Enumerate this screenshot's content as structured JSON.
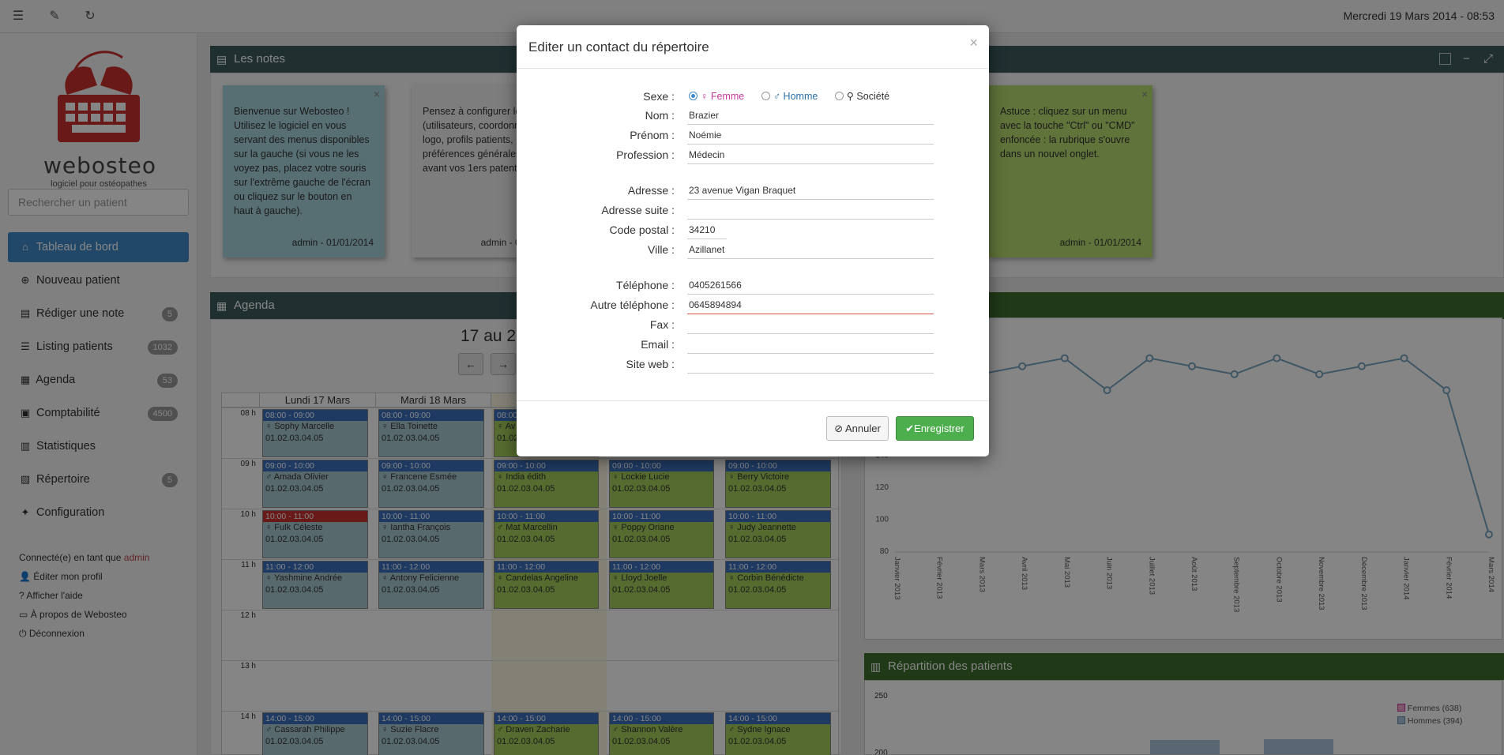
{
  "topbar": {
    "icons": [
      "list-icon",
      "magic-wand-icon",
      "refresh-icon"
    ],
    "datetime": "Mercredi 19 Mars 2014 - 08:53"
  },
  "sidebar": {
    "logo_text": "webosteo",
    "logo_sub": "logiciel pour ostéopathes",
    "search_placeholder": "Rechercher un patient",
    "items": [
      {
        "label": "Tableau de bord",
        "icon": "home-icon",
        "badge": ""
      },
      {
        "label": "Nouveau patient",
        "icon": "plus-circle-icon",
        "badge": ""
      },
      {
        "label": "Rédiger une note",
        "icon": "note-icon",
        "badge": "5"
      },
      {
        "label": "Listing patients",
        "icon": "list-icon",
        "badge": "1032"
      },
      {
        "label": "Agenda",
        "icon": "calendar-icon",
        "badge": "53"
      },
      {
        "label": "Comptabilité",
        "icon": "ledger-icon",
        "badge": "4500"
      },
      {
        "label": "Statistiques",
        "icon": "bar-chart-icon",
        "badge": ""
      },
      {
        "label": "Répertoire",
        "icon": "book-icon",
        "badge": "5"
      },
      {
        "label": "Configuration",
        "icon": "wrench-icon",
        "badge": ""
      }
    ],
    "user": {
      "connected_prefix": "Connecté(e) en tant que",
      "username": "admin",
      "links": [
        "Éditer mon profil",
        "Afficher l'aide",
        "À propos de Webosteo",
        "Déconnexion"
      ]
    }
  },
  "notes_panel": {
    "title": "Les notes",
    "notes": [
      {
        "text": "Bienvenue sur Webosteo ! Utilisez le logiciel en vous servant des menus disponibles sur la gauche (si vous ne les voyez pas, placez votre souris sur l'extrême gauche de l'écran ou cliquez sur le bouton en haut à gauche).",
        "footer": "admin - 01/01/2014"
      },
      {
        "text": "Pensez à configurer le logiciel (utilisateurs, coordonnées et logo, profils patients, préférences générales, etc) avant vos 1ers patents.",
        "footer": "admin - 01/01/2014"
      },
      {
        "text": "Astuce : cliquez sur un menu avec la touche \"Ctrl\" ou \"CMD\" enfoncée : la rubrique s'ouvre dans un nouvel onglet.",
        "footer": "admin - 01/01/2014"
      }
    ]
  },
  "agenda_panel": {
    "title": "Agenda",
    "range": "17 au 21",
    "prev": "←",
    "next": "→",
    "days": [
      "Lundi 17 Mars",
      "Mardi 18 Mars",
      "M",
      "",
      ""
    ],
    "hours": [
      "08 h",
      "09 h",
      "10 h",
      "11 h",
      "12 h",
      "13 h",
      "14 h"
    ],
    "appointments": [
      {
        "day": 0,
        "slot": 0,
        "time": "08:00 - 09:00",
        "name": "♀ Sophy Marcelle",
        "phone": "01.02.03.04.05",
        "color": "blue"
      },
      {
        "day": 1,
        "slot": 0,
        "time": "08:00 - 09:00",
        "name": "♀ Ella Toinette",
        "phone": "01.02.03.04.05",
        "color": "blue"
      },
      {
        "day": 2,
        "slot": 0,
        "time": "08:00 - 09:00",
        "name": "♀ Av",
        "phone": "01.02.03.04.05",
        "color": "green"
      },
      {
        "day": 0,
        "slot": 1,
        "time": "09:00 - 10:00",
        "name": "♂ Amada Olivier",
        "phone": "01.02.03.04.05",
        "color": "blue"
      },
      {
        "day": 1,
        "slot": 1,
        "time": "09:00 - 10:00",
        "name": "♀ Francene Esmée",
        "phone": "01.02.03.04.05",
        "color": "blue"
      },
      {
        "day": 2,
        "slot": 1,
        "time": "09:00 - 10:00",
        "name": "♀ India édith",
        "phone": "01.02.03.04.05",
        "color": "green"
      },
      {
        "day": 3,
        "slot": 1,
        "time": "09:00 - 10:00",
        "name": "♀ Lockie Lucie",
        "phone": "01.02.03.04.05",
        "color": "green"
      },
      {
        "day": 4,
        "slot": 1,
        "time": "09:00 - 10:00",
        "name": "♀ Berry Victoire",
        "phone": "01.02.03.04.05",
        "color": "green"
      },
      {
        "day": 0,
        "slot": 2,
        "time": "10:00 - 11:00",
        "name": "♀ Fulk Céleste",
        "phone": "01.02.03.04.05",
        "color": "blue",
        "red": true
      },
      {
        "day": 1,
        "slot": 2,
        "time": "10:00 - 11:00",
        "name": "♀ Iantha François",
        "phone": "01.02.03.04.05",
        "color": "blue"
      },
      {
        "day": 2,
        "slot": 2,
        "time": "10:00 - 11:00",
        "name": "♂ Mat Marcellin",
        "phone": "01.02.03.04.05",
        "color": "green"
      },
      {
        "day": 3,
        "slot": 2,
        "time": "10:00 - 11:00",
        "name": "♀ Poppy Oriane",
        "phone": "01.02.03.04.05",
        "color": "green"
      },
      {
        "day": 4,
        "slot": 2,
        "time": "10:00 - 11:00",
        "name": "♀ Judy Jeannette",
        "phone": "01.02.03.04.05",
        "color": "green"
      },
      {
        "day": 0,
        "slot": 3,
        "time": "11:00 - 12:00",
        "name": "♀ Yashmine Andrée",
        "phone": "01.02.03.04.05",
        "color": "blue"
      },
      {
        "day": 1,
        "slot": 3,
        "time": "11:00 - 12:00",
        "name": "♀ Antony Felicienne",
        "phone": "01.02.03.04.05",
        "color": "blue"
      },
      {
        "day": 2,
        "slot": 3,
        "time": "11:00 - 12:00",
        "name": "♀ Candelas Angeline",
        "phone": "01.02.03.04.05",
        "color": "green"
      },
      {
        "day": 3,
        "slot": 3,
        "time": "11:00 - 12:00",
        "name": "♀ Lloyd Joelle",
        "phone": "01.02.03.04.05",
        "color": "green"
      },
      {
        "day": 4,
        "slot": 3,
        "time": "11:00 - 12:00",
        "name": "♀ Corbin Bénédicte",
        "phone": "01.02.03.04.05",
        "color": "green"
      },
      {
        "day": 0,
        "slot": 6,
        "time": "14:00 - 15:00",
        "name": "♂ Cassarah Philippe",
        "phone": "01.02.03.04.05",
        "color": "blue"
      },
      {
        "day": 1,
        "slot": 6,
        "time": "14:00 - 15:00",
        "name": "♀ Suzie Flacre",
        "phone": "01.02.03.04.05",
        "color": "blue"
      },
      {
        "day": 2,
        "slot": 6,
        "time": "14:00 - 15:00",
        "name": "♂ Draven Zacharie",
        "phone": "01.02.03.04.05",
        "color": "green"
      },
      {
        "day": 3,
        "slot": 6,
        "time": "14:00 - 15:00",
        "name": "♂ Shannon Valère",
        "phone": "01.02.03.04.05",
        "color": "green"
      },
      {
        "day": 4,
        "slot": 6,
        "time": "14:00 - 15:00",
        "name": "♂ Sydne Ignace",
        "phone": "01.02.03.04.05",
        "color": "green"
      }
    ]
  },
  "consult_panel": {
    "title": "consultations",
    "chart_data": {
      "type": "line",
      "categories": [
        "Janvier 2013",
        "Février 2013",
        "Mars 2013",
        "Avril 2013",
        "Mai 2013",
        "Juin 2013",
        "Juillet 2013",
        "Août 2013",
        "Septembre 2013",
        "Octobre 2013",
        "Novembre 2013",
        "Décembre 2013",
        "Janvier 2014",
        "Février 2014",
        "Mars 2014"
      ],
      "values": [
        null,
        null,
        190,
        195,
        200,
        180,
        200,
        195,
        190,
        200,
        190,
        195,
        200,
        180,
        90
      ],
      "yticks": [
        80,
        100,
        120,
        140
      ],
      "ylim": [
        80,
        220
      ]
    }
  },
  "repartition_panel": {
    "title": "Répartition des patients",
    "legend": [
      "Femmes (638)",
      "Hommes (394)"
    ],
    "yticks": [
      "250",
      "200"
    ]
  },
  "modal": {
    "title": "Editer un contact du répertoire",
    "close": "×",
    "sexe_label": "Sexe :",
    "sexe_options": [
      {
        "label": "♀ Femme",
        "checked": true,
        "color": "#c2399b"
      },
      {
        "label": "♂ Homme",
        "checked": false,
        "color": "#2a6fa8"
      },
      {
        "label": "⚲ Société",
        "checked": false,
        "color": "#333333"
      }
    ],
    "fields": [
      {
        "label": "Nom :",
        "value": "Brazier"
      },
      {
        "label": "Prénom :",
        "value": "Noémie"
      },
      {
        "label": "Profession :",
        "value": "Médecin"
      },
      {
        "label": "Adresse :",
        "value": "23 avenue Vigan Braquet"
      },
      {
        "label": "Adresse suite :",
        "value": ""
      },
      {
        "label": "Code postal :",
        "value": "34210"
      },
      {
        "label": "Ville :",
        "value": "Azillanet"
      },
      {
        "label": "Téléphone :",
        "value": "0405261566"
      },
      {
        "label": "Autre téléphone :",
        "value": "0645894894"
      },
      {
        "label": "Fax :",
        "value": ""
      },
      {
        "label": "Email :",
        "value": ""
      },
      {
        "label": "Site web :",
        "value": ""
      }
    ],
    "cancel_label": "Annuler",
    "save_label": "Enregistrer"
  }
}
